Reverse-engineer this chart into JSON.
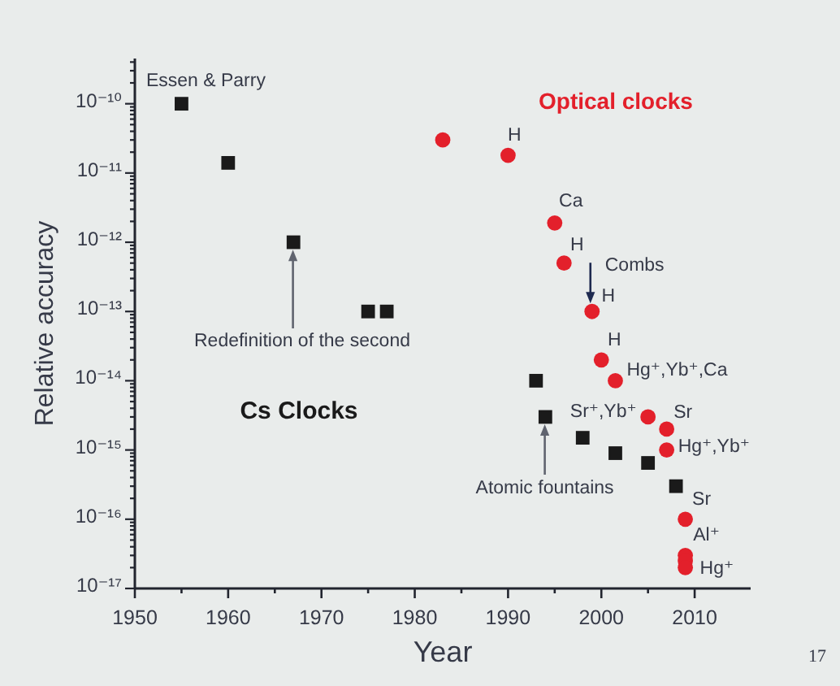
{
  "chart_data": {
    "type": "scatter",
    "xlabel": "Year",
    "ylabel": "Relative accuracy",
    "log": "y",
    "xlim": [
      1950,
      2016
    ],
    "xticks": [
      1950,
      {
        "value": 1955,
        "label": null
      },
      1960,
      {
        "value": 1965,
        "label": null
      },
      1970,
      {
        "value": 1975,
        "label": null
      },
      1980,
      {
        "value": 1985,
        "label": null
      },
      1990,
      {
        "value": 1995,
        "label": null
      },
      2000,
      {
        "value": 2005,
        "label": null
      },
      2010
    ],
    "ylim": [
      1e-17,
      4.5e-10
    ],
    "yticks": [
      {
        "value": 1e-17,
        "label": "10⁻¹⁷"
      },
      {
        "value": 2e-17,
        "label": null
      },
      {
        "value": 3e-17,
        "label": null
      },
      {
        "value": 4e-17,
        "label": null
      },
      {
        "value": 5e-17,
        "label": null
      },
      {
        "value": 6e-17,
        "label": null
      },
      {
        "value": 7e-17,
        "label": null
      },
      {
        "value": 8e-17,
        "label": null
      },
      {
        "value": 9e-17,
        "label": null
      },
      {
        "value": 1e-16,
        "label": "10⁻¹⁶"
      },
      {
        "value": 2e-16,
        "label": null
      },
      {
        "value": 3e-16,
        "label": null
      },
      {
        "value": 4e-16,
        "label": null
      },
      {
        "value": 5e-16,
        "label": null
      },
      {
        "value": 6e-16,
        "label": null
      },
      {
        "value": 7e-16,
        "label": null
      },
      {
        "value": 8e-16,
        "label": null
      },
      {
        "value": 9e-16,
        "label": null
      },
      {
        "value": 1e-15,
        "label": "10⁻¹⁵"
      },
      {
        "value": 2e-15,
        "label": null
      },
      {
        "value": 3e-15,
        "label": null
      },
      {
        "value": 4e-15,
        "label": null
      },
      {
        "value": 5e-15,
        "label": null
      },
      {
        "value": 6e-15,
        "label": null
      },
      {
        "value": 7e-15,
        "label": null
      },
      {
        "value": 8e-15,
        "label": null
      },
      {
        "value": 9e-15,
        "label": null
      },
      {
        "value": 1e-14,
        "label": "10⁻¹⁴"
      },
      {
        "value": 2e-14,
        "label": null
      },
      {
        "value": 3e-14,
        "label": null
      },
      {
        "value": 4e-14,
        "label": null
      },
      {
        "value": 5e-14,
        "label": null
      },
      {
        "value": 6e-14,
        "label": null
      },
      {
        "value": 7e-14,
        "label": null
      },
      {
        "value": 8e-14,
        "label": null
      },
      {
        "value": 9e-14,
        "label": null
      },
      {
        "value": 1e-13,
        "label": "10⁻¹³"
      },
      {
        "value": 2e-13,
        "label": null
      },
      {
        "value": 3e-13,
        "label": null
      },
      {
        "value": 4e-13,
        "label": null
      },
      {
        "value": 5e-13,
        "label": null
      },
      {
        "value": 6e-13,
        "label": null
      },
      {
        "value": 7e-13,
        "label": null
      },
      {
        "value": 8e-13,
        "label": null
      },
      {
        "value": 9e-13,
        "label": null
      },
      {
        "value": 1e-12,
        "label": "10⁻¹²"
      },
      {
        "value": 2e-12,
        "label": null
      },
      {
        "value": 3e-12,
        "label": null
      },
      {
        "value": 4e-12,
        "label": null
      },
      {
        "value": 5e-12,
        "label": null
      },
      {
        "value": 6e-12,
        "label": null
      },
      {
        "value": 7e-12,
        "label": null
      },
      {
        "value": 8e-12,
        "label": null
      },
      {
        "value": 9e-12,
        "label": null
      },
      {
        "value": 1e-11,
        "label": "10⁻¹¹"
      },
      {
        "value": 2e-11,
        "label": null
      },
      {
        "value": 3e-11,
        "label": null
      },
      {
        "value": 4e-11,
        "label": null
      },
      {
        "value": 5e-11,
        "label": null
      },
      {
        "value": 6e-11,
        "label": null
      },
      {
        "value": 7e-11,
        "label": null
      },
      {
        "value": 8e-11,
        "label": null
      },
      {
        "value": 9e-11,
        "label": null
      },
      {
        "value": 1e-10,
        "label": "10⁻¹⁰"
      },
      {
        "value": 2e-10,
        "label": null
      },
      {
        "value": 3e-10,
        "label": null
      },
      {
        "value": 4e-10,
        "label": null
      }
    ],
    "series": [
      {
        "name": "Cs Clocks",
        "marker": "square",
        "color": "#1a1a1a",
        "x": [
          1955,
          1960,
          1967,
          1975,
          1977,
          1993,
          1994,
          1998,
          2001.5,
          2005,
          2008
        ],
        "values": [
          1e-10,
          1.4e-11,
          1e-12,
          1e-13,
          1e-13,
          1e-14,
          3e-15,
          1.5e-15,
          9e-16,
          6.5e-16,
          3e-16
        ]
      },
      {
        "name": "Optical clocks",
        "marker": "circle",
        "color": "#e3202b",
        "x": [
          1983,
          1990,
          1995,
          1996,
          1999,
          2000,
          2001.5,
          2005,
          2007,
          2007,
          2009,
          2009,
          2009,
          2009
        ],
        "values": [
          3e-11,
          1.8e-11,
          1.9e-12,
          5e-13,
          1e-13,
          2e-14,
          1e-14,
          3e-15,
          2e-15,
          1e-15,
          1e-16,
          3e-17,
          2.5e-17,
          2e-17
        ]
      }
    ],
    "annotations": [
      {
        "text": "Essen & Parry",
        "x": 1955,
        "y": 1e-10
      },
      "Redefinition of the second",
      "Atomic fountains",
      {
        "text": "Combs",
        "x": 1999,
        "y": 1e-13
      },
      {
        "text": "H",
        "x": 1990,
        "y": 1.8e-11
      },
      {
        "text": "Ca",
        "x": 1995,
        "y": 1.9e-12
      },
      {
        "text": "H",
        "x": 1996,
        "y": 5e-13
      },
      {
        "text": "H",
        "x": 1999,
        "y": 1e-13
      },
      {
        "text": "H",
        "x": 2000,
        "y": 2e-14
      },
      {
        "text": "Hg⁺,Yb⁺,Ca",
        "x": 2001.5,
        "y": 1e-14
      },
      {
        "text": "Sr⁺,Yb⁺",
        "x": 2005,
        "y": 3e-15
      },
      {
        "text": "Sr",
        "x": 2007,
        "y": 2e-15
      },
      {
        "text": "Hg⁺,Yb⁺",
        "x": 2007,
        "y": 1e-15
      },
      {
        "text": "Sr",
        "x": 2009,
        "y": 1e-16
      },
      {
        "text": "Al⁺",
        "x": 2009,
        "y": 3e-17
      },
      {
        "text": "Hg⁺",
        "x": 2009,
        "y": 2e-17
      },
      "17"
    ]
  }
}
